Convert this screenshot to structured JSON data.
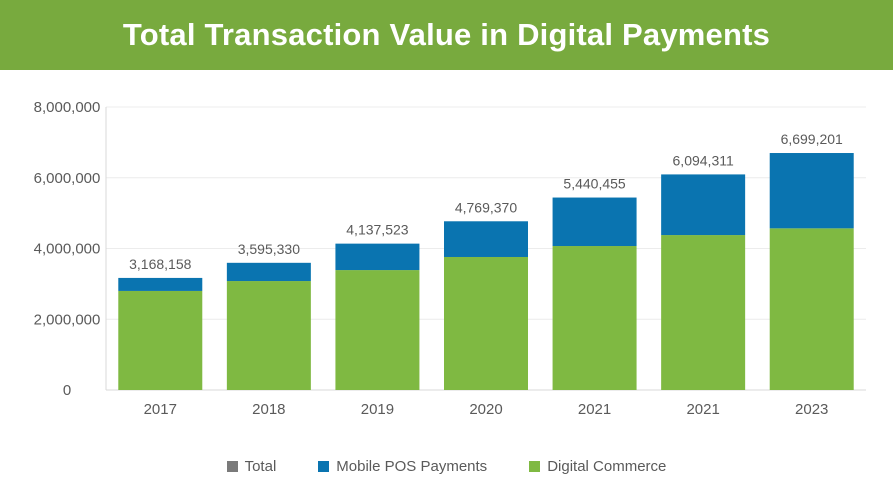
{
  "header": {
    "title": "Total Transaction Value in Digital Payments"
  },
  "colors": {
    "header_bg": "#78aa3e",
    "total": "#7a7a7a",
    "mobile_pos": "#0a74b0",
    "digital_commerce": "#7fb942"
  },
  "chart_data": {
    "type": "bar",
    "stacked": true,
    "title": "Total Transaction Value in Digital Payments",
    "xlabel": "",
    "ylabel": "",
    "categories": [
      "2017",
      "2018",
      "2019",
      "2020",
      "2021",
      "2021",
      "2023"
    ],
    "series": [
      {
        "name": "Total",
        "values": [
          3168158,
          3595330,
          4137523,
          4769370,
          5440455,
          6094311,
          6699201
        ],
        "color": "#7a7a7a"
      },
      {
        "name": "Mobile POS Payments",
        "values": [
          360000,
          510000,
          750000,
          1000000,
          1370000,
          1710000,
          2130000
        ],
        "color": "#0a74b0"
      },
      {
        "name": "Digital Commerce",
        "values": [
          2800000,
          3080000,
          3390000,
          3760000,
          4070000,
          4380000,
          4570000
        ],
        "color": "#7fb942"
      }
    ],
    "total_labels": [
      "3,168,158",
      "3,595,330",
      "4,137,523",
      "4,769,370",
      "5,440,455",
      "6,094,311",
      "6,699,201"
    ],
    "ylim": [
      0,
      8000000
    ],
    "yticks": [
      0,
      2000000,
      4000000,
      6000000,
      8000000
    ],
    "ytick_labels": [
      "0",
      "2,000,000",
      "4,000,000",
      "6,000,000",
      "8,000,000"
    ],
    "grid": true,
    "legend_position": "bottom"
  }
}
